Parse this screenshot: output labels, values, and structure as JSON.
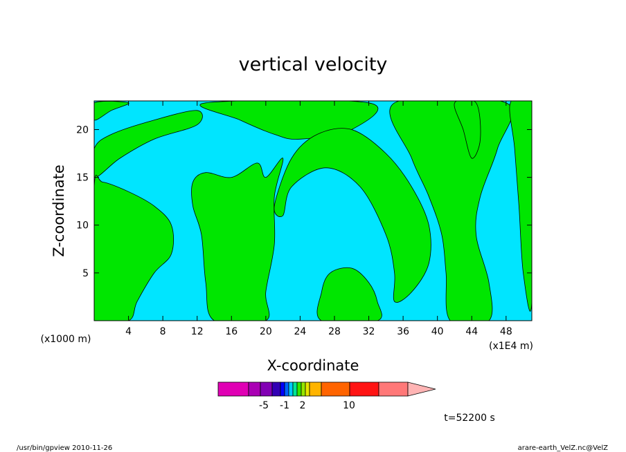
{
  "chart_data": {
    "type": "heatmap",
    "title": "vertical velocity",
    "xlabel": "X-coordinate",
    "ylabel": "Z-coordinate",
    "x_unit_left": "(x1000 m)",
    "x_unit_right": "(x1E4 m)",
    "xlim": [
      0,
      51
    ],
    "ylim": [
      0,
      23
    ],
    "x_ticks": [
      4,
      8,
      12,
      16,
      20,
      24,
      28,
      32,
      36,
      40,
      44,
      48
    ],
    "y_ticks": [
      5,
      10,
      15,
      20
    ],
    "background_color": "#00e5ff",
    "positive_color": "#00e600",
    "time_label": "t=52200 s",
    "footer_left": "/usr/bin/gpview  2010-11-26",
    "footer_right": "arare-earth_VelZ.nc@VelZ",
    "colorbar": {
      "colors": [
        "#e000b4",
        "#aa00b4",
        "#8200b4",
        "#3200b4",
        "#0000ff",
        "#0064ff",
        "#00c8ff",
        "#00e696",
        "#32e600",
        "#96e600",
        "#e6e600",
        "#ffb400",
        "#ff6400",
        "#ff1414",
        "#ff7878",
        "#ffb4b4"
      ],
      "label_values": [
        "-5",
        "-1",
        "2",
        "10"
      ]
    },
    "regions": [
      {
        "name": "upper-left-band",
        "level": "positive",
        "points": [
          [
            0,
            15
          ],
          [
            3,
            17
          ],
          [
            7,
            19
          ],
          [
            12,
            20.5
          ],
          [
            12,
            22
          ],
          [
            7,
            21
          ],
          [
            2,
            19.5
          ],
          [
            0,
            18
          ]
        ]
      },
      {
        "name": "left-top-corner",
        "level": "positive",
        "points": [
          [
            0,
            21
          ],
          [
            2,
            22
          ],
          [
            4,
            22.8
          ],
          [
            0,
            22.8
          ]
        ]
      },
      {
        "name": "top-center-band",
        "level": "positive",
        "points": [
          [
            13,
            22.8
          ],
          [
            17,
            21
          ],
          [
            21,
            19.5
          ],
          [
            24,
            19
          ],
          [
            30,
            20
          ],
          [
            32,
            22.8
          ]
        ]
      },
      {
        "name": "left-main-blob",
        "level": "positive",
        "points": [
          [
            0,
            0
          ],
          [
            4,
            0
          ],
          [
            5,
            2
          ],
          [
            7,
            5
          ],
          [
            9,
            7
          ],
          [
            9,
            10
          ],
          [
            7,
            12
          ],
          [
            4,
            13.5
          ],
          [
            1,
            14.5
          ],
          [
            0,
            14
          ]
        ]
      },
      {
        "name": "central-cloud",
        "level": "positive",
        "points": [
          [
            11.5,
            14.5
          ],
          [
            13,
            15.5
          ],
          [
            16,
            15
          ],
          [
            19,
            16.5
          ],
          [
            20,
            15
          ],
          [
            22,
            17
          ],
          [
            21,
            13
          ],
          [
            21,
            8
          ],
          [
            20,
            3
          ],
          [
            20,
            0
          ],
          [
            14,
            0
          ],
          [
            13,
            4
          ],
          [
            12.5,
            9
          ],
          [
            11.5,
            12
          ]
        ]
      },
      {
        "name": "central-plume",
        "level": "positive",
        "points": [
          [
            21,
            12
          ],
          [
            23,
            17
          ],
          [
            26,
            19.5
          ],
          [
            30,
            20
          ],
          [
            34,
            17.5
          ],
          [
            37,
            14
          ],
          [
            39,
            10
          ],
          [
            39,
            6
          ],
          [
            37,
            3
          ],
          [
            35,
            2
          ],
          [
            35,
            5
          ],
          [
            34,
            9
          ],
          [
            31,
            14
          ],
          [
            27,
            16
          ],
          [
            23,
            14
          ],
          [
            22,
            11
          ]
        ]
      },
      {
        "name": "bottom-mound",
        "level": "positive",
        "points": [
          [
            26.5,
            0
          ],
          [
            26.5,
            3
          ],
          [
            27.5,
            5
          ],
          [
            30,
            5.5
          ],
          [
            32,
            4
          ],
          [
            33,
            2
          ],
          [
            33,
            0
          ]
        ]
      },
      {
        "name": "right-cluster",
        "level": "positive",
        "points": [
          [
            35,
            22.8
          ],
          [
            37,
            17
          ],
          [
            39,
            13
          ],
          [
            40.5,
            9
          ],
          [
            41,
            5
          ],
          [
            41.5,
            0
          ],
          [
            46,
            0
          ],
          [
            46,
            4
          ],
          [
            44.5,
            9
          ],
          [
            45,
            13
          ],
          [
            47,
            18
          ],
          [
            48,
            22.8
          ]
        ]
      },
      {
        "name": "far-right-strip",
        "level": "positive",
        "points": [
          [
            48.5,
            22.8
          ],
          [
            49,
            18
          ],
          [
            49.5,
            12
          ],
          [
            50,
            5
          ],
          [
            51,
            2
          ],
          [
            51,
            22.8
          ]
        ]
      },
      {
        "name": "right-top-strip",
        "level": "positive",
        "points": [
          [
            42,
            22.8
          ],
          [
            43,
            20
          ],
          [
            44,
            17
          ],
          [
            45,
            19
          ],
          [
            44.5,
            22.8
          ]
        ]
      }
    ]
  }
}
